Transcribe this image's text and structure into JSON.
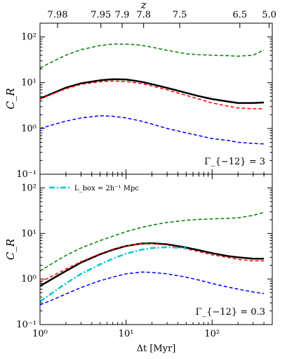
{
  "chart_data": [
    {
      "type": "line",
      "panel": "top",
      "xlabel": "Δt [Myr]",
      "ylabel": "C_R",
      "xscale": "log",
      "yscale": "log",
      "xlim": [
        1,
        500
      ],
      "ylim": [
        0.1,
        200
      ],
      "top_axis_label": "z",
      "top_ticks": [
        {
          "label": "7.98",
          "x": 1.6
        },
        {
          "label": "7.95",
          "x": 5.1
        },
        {
          "label": "7.9",
          "x": 9.0
        },
        {
          "label": "7.8",
          "x": 16.0
        },
        {
          "label": "7.5",
          "x": 42
        },
        {
          "label": "6.5",
          "x": 210
        },
        {
          "label": "5.0",
          "x": 460
        }
      ],
      "annotation": "Γ_{−12} = 3",
      "series": [
        {
          "color": "#008000",
          "style": "dashed",
          "width": 1.5,
          "x": [
            1,
            1.5,
            2,
            3,
            5,
            7,
            10,
            15,
            20,
            30,
            50,
            70,
            100,
            150,
            200,
            300,
            400
          ],
          "y": [
            21,
            31,
            40,
            53,
            65,
            70,
            70,
            66,
            60,
            51,
            43,
            41,
            40,
            39,
            38,
            40,
            52
          ]
        },
        {
          "color": "#000000",
          "style": "solid",
          "width": 2.5,
          "x": [
            1,
            1.5,
            2,
            3,
            5,
            7,
            10,
            15,
            20,
            30,
            50,
            70,
            100,
            150,
            200,
            300,
            400
          ],
          "y": [
            4.5,
            6.2,
            7.8,
            9.7,
            11.3,
            11.9,
            11.8,
            10.5,
            9.3,
            7.7,
            6.0,
            5.1,
            4.4,
            3.9,
            3.6,
            3.6,
            3.7
          ]
        },
        {
          "color": "#ff0000",
          "style": "dashed",
          "width": 1.5,
          "x": [
            1,
            1.5,
            2,
            3,
            5,
            7,
            10,
            15,
            20,
            30,
            50,
            70,
            100,
            150,
            200,
            300,
            400
          ],
          "y": [
            4.4,
            6.0,
            7.4,
            9.2,
            10.5,
            10.9,
            10.6,
            9.6,
            8.5,
            7.0,
            5.3,
            4.4,
            3.6,
            3.1,
            2.8,
            2.7,
            2.7
          ]
        },
        {
          "color": "#0000ff",
          "style": "dashed",
          "width": 1.5,
          "x": [
            1,
            1.5,
            2,
            3,
            5,
            7,
            10,
            15,
            20,
            30,
            50,
            70,
            100,
            150,
            200,
            300,
            400
          ],
          "y": [
            1.0,
            1.25,
            1.45,
            1.7,
            1.9,
            1.85,
            1.7,
            1.45,
            1.25,
            1.0,
            0.8,
            0.7,
            0.6,
            0.55,
            0.5,
            0.47,
            0.46
          ]
        }
      ]
    },
    {
      "type": "line",
      "panel": "bottom",
      "xlabel": "Δt [Myr]",
      "ylabel": "C_R",
      "xscale": "log",
      "yscale": "log",
      "xlim": [
        1,
        500
      ],
      "ylim": [
        0.1,
        200
      ],
      "xticks": [
        {
          "label": "10⁰",
          "x": 1
        },
        {
          "label": "10¹",
          "x": 10
        },
        {
          "label": "10²",
          "x": 100
        }
      ],
      "annotation": "Γ_{−12} = 0.3",
      "legend": {
        "position": "top-left",
        "entries": [
          {
            "label": "L_box = 2h⁻¹ Mpc",
            "color": "#00cccc",
            "style": "dashdot"
          }
        ]
      },
      "series": [
        {
          "color": "#008000",
          "style": "dashed",
          "width": 1.5,
          "x": [
            1,
            1.5,
            2,
            3,
            5,
            7,
            10,
            15,
            20,
            30,
            50,
            70,
            100,
            150,
            200,
            300,
            400
          ],
          "y": [
            1.5,
            2.4,
            3.3,
            4.8,
            7.0,
            8.7,
            11.0,
            13.5,
            15.3,
            17.5,
            19.5,
            20.3,
            21.0,
            21.5,
            22.0,
            25.0,
            29.0
          ]
        },
        {
          "color": "#000000",
          "style": "solid",
          "width": 2.5,
          "x": [
            1,
            1.5,
            2,
            3,
            5,
            7,
            10,
            15,
            20,
            30,
            50,
            70,
            100,
            150,
            200,
            300,
            400
          ],
          "y": [
            0.7,
            1.1,
            1.5,
            2.3,
            3.5,
            4.4,
            5.3,
            6.0,
            6.1,
            5.8,
            4.9,
            4.3,
            3.7,
            3.2,
            3.0,
            2.8,
            2.8
          ]
        },
        {
          "color": "#ff0000",
          "style": "dashed",
          "width": 1.5,
          "x": [
            1,
            1.5,
            2,
            3,
            5,
            7,
            10,
            15,
            20,
            30,
            50,
            70,
            100,
            150,
            200,
            300,
            400
          ],
          "y": [
            0.85,
            1.25,
            1.65,
            2.4,
            3.6,
            4.5,
            5.4,
            6.0,
            6.0,
            5.6,
            4.6,
            4.0,
            3.4,
            3.0,
            2.7,
            2.5,
            2.5
          ]
        },
        {
          "color": "#00cccc",
          "style": "dashdot",
          "width": 2.5,
          "x": [
            1,
            1.5,
            2,
            3,
            5,
            7,
            10,
            15,
            20,
            30,
            50
          ],
          "y": [
            0.32,
            0.55,
            0.8,
            1.3,
            2.1,
            2.8,
            3.6,
            4.4,
            4.8,
            5.0,
            4.8
          ]
        },
        {
          "color": "#0000ff",
          "style": "dashed",
          "width": 1.5,
          "x": [
            1,
            1.5,
            2,
            3,
            5,
            7,
            10,
            15,
            20,
            30,
            50,
            70,
            100,
            150,
            200,
            300,
            400
          ],
          "y": [
            0.27,
            0.37,
            0.47,
            0.65,
            0.92,
            1.1,
            1.3,
            1.42,
            1.4,
            1.3,
            1.1,
            0.95,
            0.8,
            0.67,
            0.6,
            0.52,
            0.48
          ]
        }
      ]
    }
  ],
  "yticks": [
    "10⁻¹",
    "10⁰",
    "10¹",
    "10²"
  ]
}
